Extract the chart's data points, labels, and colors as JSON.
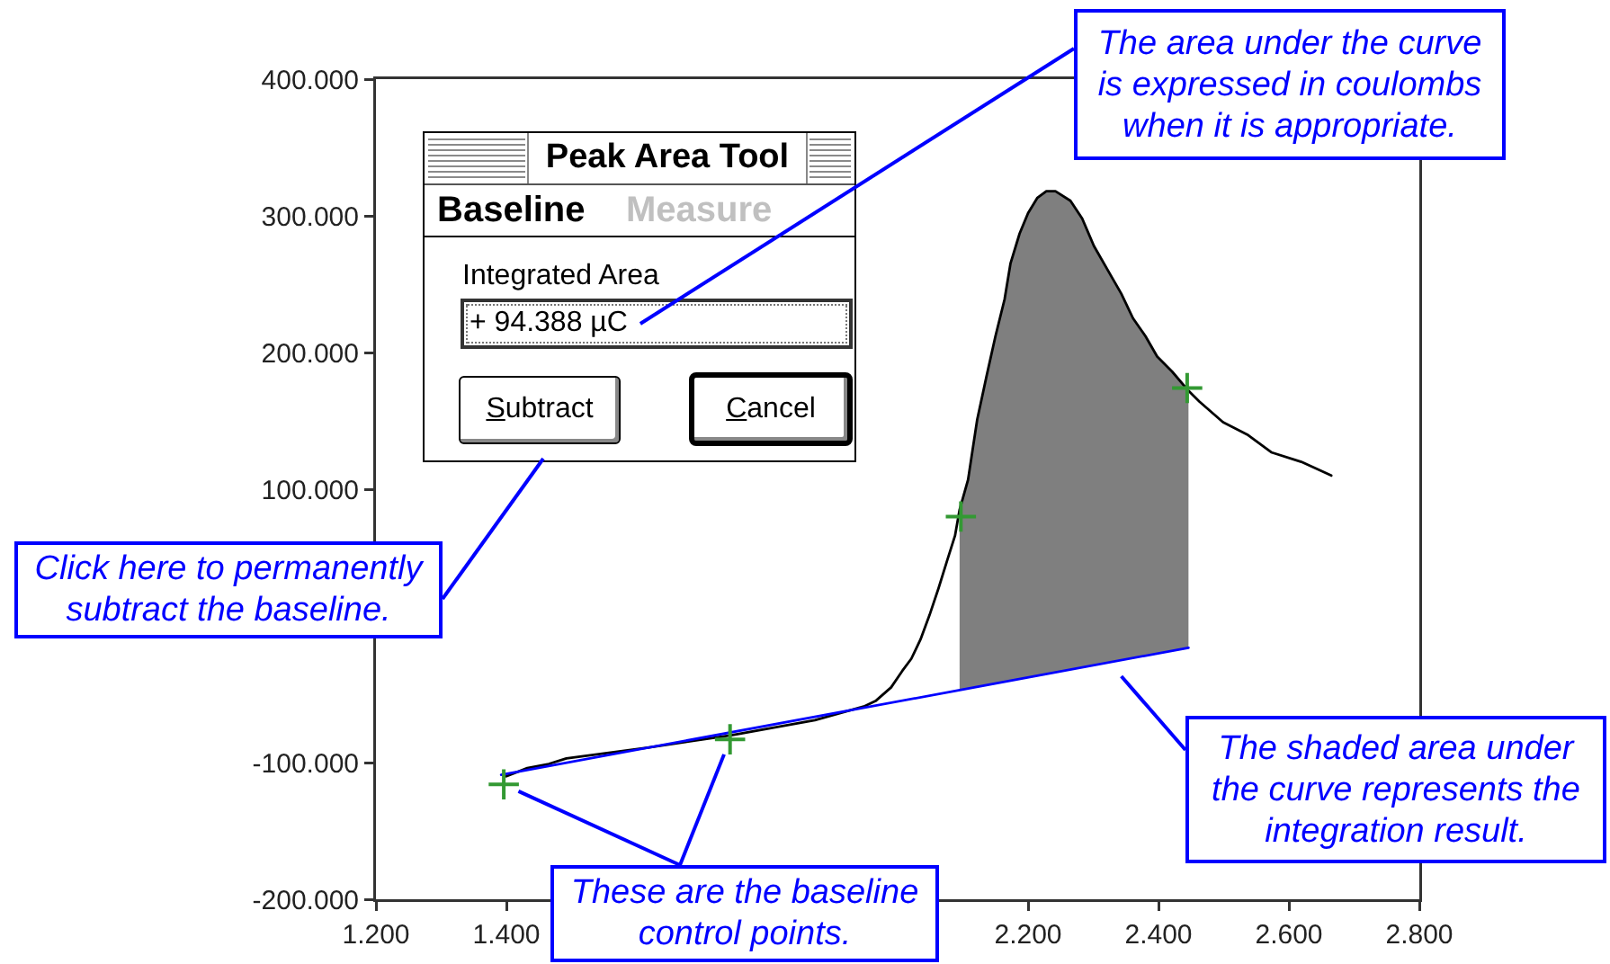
{
  "chart_data": {
    "type": "line",
    "xlim": [
      1.2,
      2.8
    ],
    "xticks": [
      {
        "value": 1.2,
        "label": "1.200"
      },
      {
        "value": 1.4,
        "label": "1.400"
      },
      {
        "value": 2.2,
        "label": "2.200"
      },
      {
        "value": 2.4,
        "label": "2.400"
      },
      {
        "value": 2.6,
        "label": "2.600"
      },
      {
        "value": 2.8,
        "label": "2.800"
      }
    ],
    "ylim": [
      -200,
      400
    ],
    "yticks": [
      {
        "value": -200,
        "label": "-200.000"
      },
      {
        "value": -100,
        "label": "-100.000"
      },
      {
        "value": 100,
        "label": "100.000"
      },
      {
        "value": 200,
        "label": "200.000"
      },
      {
        "value": 300,
        "label": "300.000"
      },
      {
        "value": 400,
        "label": "400.000"
      }
    ],
    "grid": false,
    "series": [
      {
        "color": "#000000",
        "x": [
          1.4,
          1.432,
          1.465,
          1.492,
          1.617,
          1.745,
          1.873,
          1.948,
          1.966,
          1.99,
          2.007,
          2.021,
          2.035,
          2.049,
          2.063,
          2.076,
          2.088,
          2.095,
          2.108,
          2.122,
          2.136,
          2.15,
          2.164,
          2.173,
          2.187,
          2.2,
          2.214,
          2.228,
          2.242,
          2.265,
          2.283,
          2.301,
          2.325,
          2.343,
          2.361,
          2.38,
          2.398,
          2.421,
          2.446,
          2.463,
          2.499,
          2.536,
          2.573,
          2.619,
          2.665
        ],
        "values": [
          -110,
          -104,
          -101,
          -97,
          -89,
          -80,
          -69,
          -59,
          -55,
          -45,
          -33,
          -24,
          -10,
          8,
          28,
          48,
          66,
          85,
          107,
          151,
          182,
          212,
          239,
          265,
          287,
          302,
          313,
          318,
          318,
          311,
          298,
          278,
          258,
          243,
          225,
          212,
          197,
          186,
          172,
          164,
          149,
          140,
          127,
          120,
          110
        ],
        "lower": [
          null,
          null,
          null,
          null,
          null,
          null,
          null,
          null,
          null,
          null,
          null,
          null,
          null,
          null,
          null,
          null,
          null,
          -47,
          -46,
          -45,
          -43,
          -42,
          -41,
          -40,
          -39,
          -38,
          -36,
          -35,
          -34,
          -32,
          -30,
          -29,
          -27,
          -25,
          -23,
          -22,
          -20,
          -18,
          -16,
          null,
          null,
          null,
          null,
          null,
          null
        ],
        "upper": [
          null,
          null,
          null,
          null,
          null,
          null,
          null,
          null,
          null,
          null,
          null,
          null,
          null,
          null,
          null,
          null,
          null,
          85,
          107,
          151,
          182,
          212,
          239,
          265,
          287,
          302,
          313,
          318,
          318,
          311,
          298,
          278,
          258,
          243,
          225,
          212,
          197,
          186,
          172,
          null,
          null,
          null,
          null,
          null,
          null
        ]
      },
      {
        "color": "#0000ff",
        "x": [
          1.392,
          2.446
        ],
        "values": [
          -109,
          -16
        ]
      },
      {
        "type": "scatter",
        "color": "#339933",
        "marker": "cross",
        "x": [
          1.396,
          1.743
        ],
        "values": [
          -116,
          -83
        ]
      },
      {
        "type": "scatter",
        "color": "#339933",
        "marker": "cross",
        "x": [
          2.097,
          2.444
        ],
        "values": [
          80,
          174
        ]
      }
    ],
    "annotations": [
      "Peak Area Tool",
      "Baseline",
      "Measure",
      "Integrated Area",
      "+ 94.388 µC",
      "Subtract",
      "Cancel",
      "The area under the curve\nis expressed in coulombs\nwhen it is appropriate.",
      "Click here to permanently\nsubtract the baseline.",
      {
        "text": "These are the baseline\ncontrol points.",
        "x": 1.396,
        "y": -116
      },
      "The shaded area under\nthe curve represents the\nintegration result."
    ]
  }
}
